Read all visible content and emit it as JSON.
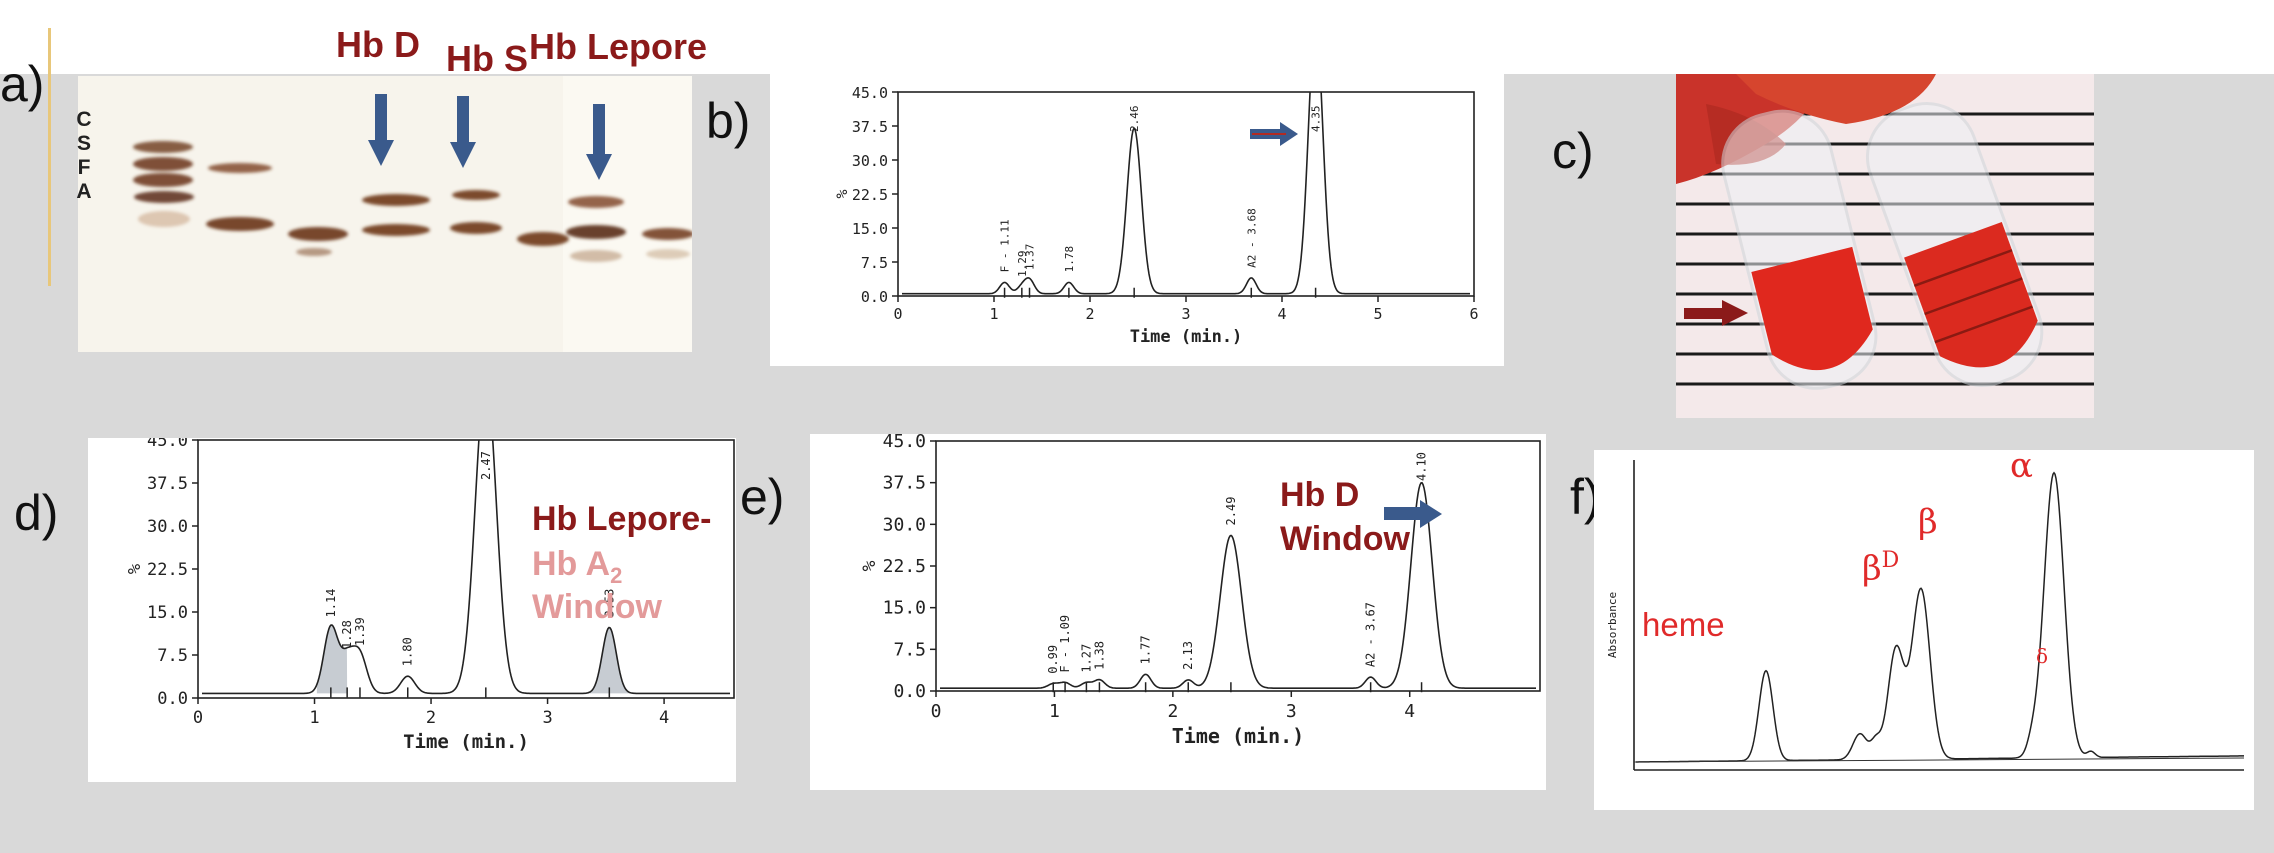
{
  "panel_labels": {
    "a": "a)",
    "b": "b)",
    "c": "c)",
    "d": "d)",
    "e": "e)",
    "f": "f)"
  },
  "gel": {
    "lane_letters": [
      "C",
      "S",
      "F",
      "A"
    ],
    "hb_d_label": "Hb D",
    "hb_s_label": "Hb S",
    "hb_lepore_label": "Hb Lepore"
  },
  "chart_data": [
    {
      "panel": "b",
      "type": "line",
      "xlabel": "Time (min.)",
      "ylabel": "%",
      "xlim": [
        0,
        6
      ],
      "ylim": [
        0,
        45
      ],
      "xticks": [
        "0",
        "1",
        "2",
        "3",
        "4",
        "5",
        "6"
      ],
      "yticks": [
        "0.0",
        "7.5",
        "15.0",
        "22.5",
        "30.0",
        "37.5",
        "45.0"
      ],
      "peaks": [
        {
          "label": "F - 1.11",
          "x": 1.11,
          "y": 2.5
        },
        {
          "label": "1.29",
          "x": 1.29,
          "y": 1.5
        },
        {
          "label": "1.37",
          "x": 1.37,
          "y": 3.0
        },
        {
          "label": "1.78",
          "x": 1.78,
          "y": 2.5
        },
        {
          "label": "2.46",
          "x": 2.46,
          "y": 36.5
        },
        {
          "label": "A2 - 3.68",
          "x": 3.68,
          "y": 3.5
        },
        {
          "label": "4.35",
          "x": 4.35,
          "y": 60
        }
      ]
    },
    {
      "panel": "d",
      "type": "line",
      "xlabel": "Time (min.)",
      "ylabel": "%",
      "xlim": [
        0,
        4.6
      ],
      "ylim": [
        0,
        45
      ],
      "xticks": [
        "0",
        "1",
        "2",
        "3",
        "4"
      ],
      "yticks": [
        "0.0",
        "7.5",
        "15.0",
        "22.5",
        "30.0",
        "37.5",
        "45.0"
      ],
      "peaks": [
        {
          "label": "1.14",
          "x": 1.14,
          "y": 11.5
        },
        {
          "label": "1.28",
          "x": 1.28,
          "y": 6.0
        },
        {
          "label": "1.39",
          "x": 1.39,
          "y": 6.5
        },
        {
          "label": "1.80",
          "x": 1.8,
          "y": 3.0
        },
        {
          "label": "2.47",
          "x": 2.47,
          "y": 55
        },
        {
          "label": "3.53",
          "x": 3.53,
          "y": 11.5
        }
      ],
      "annotation_line1": "Hb Lepore-",
      "annotation_line2": "Hb A",
      "annotation_sub": "2",
      "annotation_line3": "Window"
    },
    {
      "panel": "e",
      "type": "line",
      "xlabel": "Time (min.)",
      "ylabel": "%",
      "xlim": [
        0,
        5.1
      ],
      "ylim": [
        0,
        45
      ],
      "xticks": [
        "0",
        "1",
        "2",
        "3",
        "4"
      ],
      "yticks": [
        "0.0",
        "7.5",
        "15.0",
        "22.5",
        "30.0",
        "37.5",
        "45.0"
      ],
      "peaks": [
        {
          "label": "0.99",
          "x": 0.99,
          "y": 0.8
        },
        {
          "label": "F - 1.09",
          "x": 1.09,
          "y": 1.0
        },
        {
          "label": "1.27",
          "x": 1.27,
          "y": 1.0
        },
        {
          "label": "1.38",
          "x": 1.38,
          "y": 1.5
        },
        {
          "label": "1.77",
          "x": 1.77,
          "y": 2.5
        },
        {
          "label": "2.13",
          "x": 2.13,
          "y": 1.5
        },
        {
          "label": "2.49",
          "x": 2.49,
          "y": 27.5
        },
        {
          "label": "A2 - 3.67",
          "x": 3.67,
          "y": 2.0
        },
        {
          "label": "4.10",
          "x": 4.1,
          "y": 37
        }
      ],
      "annotation_line1": "Hb D",
      "annotation_line2": "Window"
    },
    {
      "panel": "f",
      "type": "line",
      "ylabel": "Absorbance",
      "peak_names": {
        "heme": "heme",
        "beta_d": "β",
        "beta_d_sup": "D",
        "beta": "β",
        "alpha": "α",
        "delta": "δ"
      }
    }
  ]
}
